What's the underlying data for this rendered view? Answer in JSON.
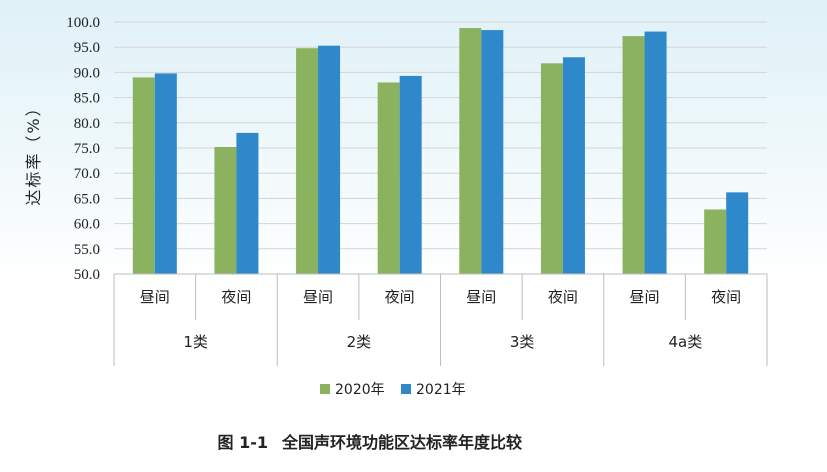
{
  "chart_data": {
    "type": "bar",
    "title": "全国声环境功能区达标率年度比较",
    "figure_label": "图 1-1",
    "ylabel": "达标率（%）",
    "ylim": [
      50.0,
      100.0
    ],
    "yticks": [
      "50.0",
      "55.0",
      "60.0",
      "65.0",
      "70.0",
      "75.0",
      "80.0",
      "85.0",
      "90.0",
      "95.0",
      "100.0"
    ],
    "grid": true,
    "legend_position": "bottom",
    "categories": [
      "昼间",
      "夜间",
      "昼间",
      "夜间",
      "昼间",
      "夜间",
      "昼间",
      "夜间"
    ],
    "groups": [
      "1类",
      "2类",
      "3类",
      "4a类"
    ],
    "series": [
      {
        "name": "2020年",
        "color": "#8bb25e",
        "values": [
          89.0,
          75.2,
          94.8,
          88.0,
          98.8,
          91.8,
          97.2,
          62.8
        ]
      },
      {
        "name": "2021年",
        "color": "#2e88c9",
        "values": [
          89.8,
          78.0,
          95.3,
          89.3,
          98.4,
          93.0,
          98.1,
          66.2
        ]
      }
    ]
  }
}
